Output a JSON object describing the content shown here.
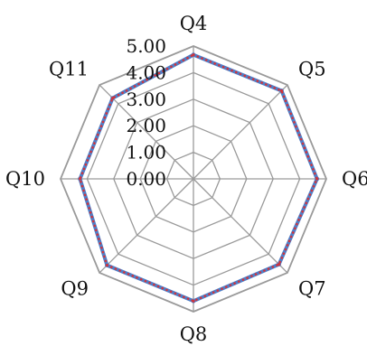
{
  "chart_data": {
    "type": "radar",
    "title": "",
    "categories": [
      "Q4",
      "Q5",
      "Q6",
      "Q7",
      "Q8",
      "Q9",
      "Q10",
      "Q11"
    ],
    "rlim": [
      0,
      5
    ],
    "ticks": [
      "0.00",
      "1.00",
      "2.00",
      "3.00",
      "4.00",
      "5.00"
    ],
    "tick_values": [
      0,
      1,
      2,
      3,
      4,
      5
    ],
    "grid": true,
    "series": [
      {
        "values": [
          4.67,
          4.69,
          4.65,
          4.55,
          4.6,
          4.6,
          4.27,
          4.3
        ],
        "color": "#4e7fc8",
        "style": "solid"
      },
      {
        "values": [
          4.67,
          4.69,
          4.65,
          4.55,
          4.6,
          4.6,
          4.27,
          4.3
        ],
        "color": "#d0343c",
        "style": "dotted"
      }
    ]
  },
  "colors": {
    "grid": "#9a9a9a"
  }
}
